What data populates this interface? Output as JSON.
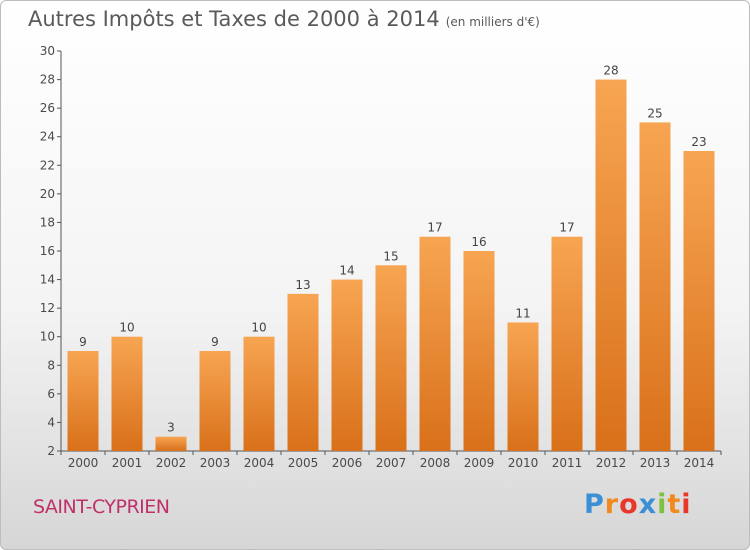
{
  "header": {
    "title": "Autres Impôts et Taxes de 2000 à 2014",
    "subtitle": "(en milliers d'€)"
  },
  "footer": {
    "city": "SAINT-CYPRIEN",
    "logo_letters": [
      "P",
      "r",
      "o",
      "x",
      "i",
      "t",
      "i"
    ],
    "logo_colors": [
      "#3a8fd6",
      "#f08a1c",
      "#e8362a",
      "#3a8fd6",
      "#7cc142",
      "#f08a1c",
      "#e8362a"
    ]
  },
  "colors": {
    "bar_light": "#f7a552",
    "bar_dark": "#d9701a",
    "city_text": "#c0306a"
  },
  "chart_data": {
    "type": "bar",
    "title": "Autres Impôts et Taxes de 2000 à 2014",
    "subtitle": "(en milliers d'€)",
    "categories": [
      "2000",
      "2001",
      "2002",
      "2003",
      "2004",
      "2005",
      "2006",
      "2007",
      "2008",
      "2009",
      "2010",
      "2011",
      "2012",
      "2013",
      "2014"
    ],
    "values": [
      9,
      10,
      3,
      9,
      10,
      13,
      14,
      15,
      17,
      16,
      11,
      17,
      28,
      25,
      23
    ],
    "ylim": [
      2,
      30
    ],
    "yticks": [
      2,
      4,
      6,
      8,
      10,
      12,
      14,
      16,
      18,
      20,
      22,
      24,
      26,
      28,
      30
    ],
    "xlabel": "",
    "ylabel": "",
    "grid": false,
    "legend": "none"
  }
}
